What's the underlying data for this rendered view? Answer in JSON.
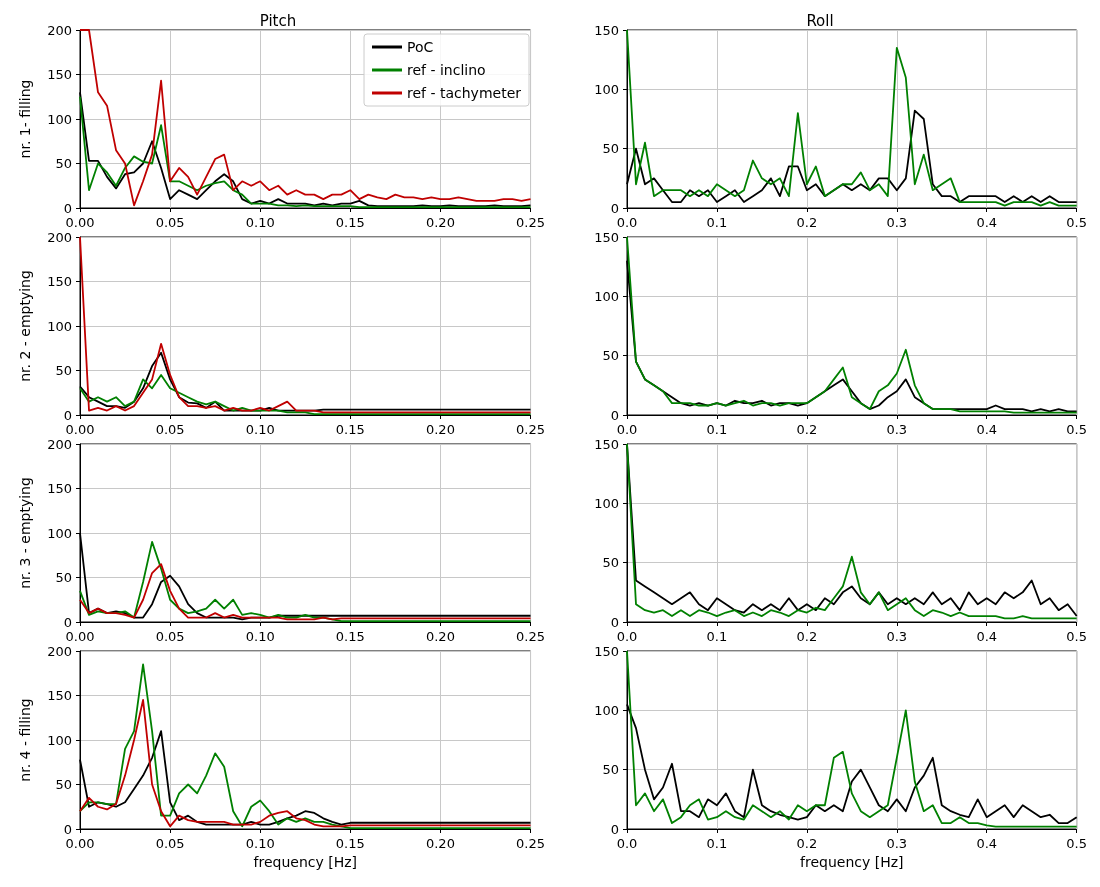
{
  "chart_data": [
    {
      "type": "line",
      "title": "Pitch",
      "ylabel": "nr. 1- filling",
      "x": [
        0,
        0.005,
        0.01,
        0.015,
        0.02,
        0.025,
        0.03,
        0.035,
        0.04,
        0.045,
        0.05,
        0.055,
        0.06,
        0.065,
        0.07,
        0.075,
        0.08,
        0.085,
        0.09,
        0.095,
        0.1,
        0.105,
        0.11,
        0.115,
        0.12,
        0.125,
        0.13,
        0.135,
        0.14,
        0.145,
        0.15,
        0.155,
        0.16,
        0.165,
        0.17,
        0.175,
        0.18,
        0.185,
        0.19,
        0.195,
        0.2,
        0.205,
        0.21,
        0.215,
        0.22,
        0.225,
        0.23,
        0.235,
        0.24,
        0.245,
        0.25
      ],
      "xlim": [
        0,
        0.25
      ],
      "xticks": [
        {
          "value": 0,
          "label": "0.00"
        },
        {
          "value": 0.05,
          "label": "0.05"
        },
        {
          "value": 0.1,
          "label": "0.10"
        },
        {
          "value": 0.15,
          "label": "0.15"
        },
        {
          "value": 0.2,
          "label": "0.20"
        },
        {
          "value": 0.25,
          "label": "0.25"
        }
      ],
      "ylim": [
        0,
        200
      ],
      "yticks": [
        0,
        50,
        100,
        150,
        200
      ],
      "grid": true,
      "legend": "top right",
      "marker": "none",
      "line_style": "solid",
      "series": [
        {
          "name": "PoC",
          "color": "#000000",
          "values": [
            130,
            53,
            53,
            35,
            22,
            38,
            40,
            50,
            75,
            45,
            10,
            20,
            15,
            10,
            20,
            30,
            38,
            30,
            10,
            5,
            8,
            5,
            10,
            5,
            5,
            5,
            3,
            5,
            3,
            5,
            5,
            8,
            3,
            2,
            2,
            2,
            2,
            2,
            3,
            2,
            2,
            3,
            2,
            2,
            2,
            2,
            3,
            2,
            2,
            2,
            3
          ]
        },
        {
          "name": "ref - inclino",
          "color": "#008000",
          "values": [
            125,
            20,
            50,
            40,
            25,
            45,
            58,
            52,
            50,
            93,
            30,
            30,
            25,
            20,
            25,
            28,
            30,
            20,
            15,
            5,
            5,
            5,
            3,
            3,
            2,
            3,
            2,
            2,
            2,
            2,
            2,
            1,
            1,
            1,
            1,
            1,
            1,
            1,
            1,
            1,
            1,
            1,
            1,
            1,
            1,
            1,
            1,
            1,
            1,
            1,
            1
          ]
        },
        {
          "name": "ref - tachymeter",
          "color": "#c00000",
          "values": [
            200,
            200,
            130,
            115,
            65,
            50,
            3,
            30,
            60,
            143,
            30,
            45,
            35,
            15,
            35,
            55,
            60,
            20,
            30,
            25,
            30,
            20,
            25,
            15,
            20,
            15,
            15,
            10,
            15,
            15,
            20,
            10,
            15,
            12,
            10,
            15,
            12,
            12,
            10,
            12,
            10,
            10,
            12,
            10,
            8,
            8,
            8,
            10,
            10,
            8,
            10
          ]
        }
      ]
    },
    {
      "type": "line",
      "title": "Roll",
      "x": [
        0,
        0.01,
        0.02,
        0.03,
        0.04,
        0.05,
        0.06,
        0.07,
        0.08,
        0.09,
        0.1,
        0.11,
        0.12,
        0.13,
        0.14,
        0.15,
        0.16,
        0.17,
        0.18,
        0.19,
        0.2,
        0.21,
        0.22,
        0.23,
        0.24,
        0.25,
        0.26,
        0.27,
        0.28,
        0.29,
        0.3,
        0.31,
        0.32,
        0.33,
        0.34,
        0.35,
        0.36,
        0.37,
        0.38,
        0.39,
        0.4,
        0.41,
        0.42,
        0.43,
        0.44,
        0.45,
        0.46,
        0.47,
        0.48,
        0.49,
        0.5
      ],
      "xlim": [
        0,
        0.5
      ],
      "xticks": [
        {
          "value": 0,
          "label": "0.0"
        },
        {
          "value": 0.1,
          "label": "0.1"
        },
        {
          "value": 0.2,
          "label": "0.2"
        },
        {
          "value": 0.3,
          "label": "0.3"
        },
        {
          "value": 0.4,
          "label": "0.4"
        },
        {
          "value": 0.5,
          "label": "0.5"
        }
      ],
      "ylim": [
        0,
        150
      ],
      "yticks": [
        0,
        50,
        100,
        150
      ],
      "grid": true,
      "marker": "none",
      "line_style": "solid",
      "series": [
        {
          "color": "#000000",
          "values": [
            20,
            50,
            20,
            25,
            15,
            5,
            5,
            15,
            10,
            15,
            5,
            10,
            15,
            5,
            10,
            15,
            25,
            10,
            35,
            35,
            15,
            20,
            10,
            15,
            20,
            15,
            20,
            15,
            25,
            25,
            15,
            25,
            82,
            75,
            20,
            10,
            10,
            5,
            10,
            10,
            10,
            10,
            5,
            10,
            5,
            10,
            5,
            10,
            5,
            5,
            5
          ]
        },
        {
          "color": "#008000",
          "values": [
            150,
            20,
            55,
            10,
            15,
            15,
            15,
            10,
            15,
            10,
            20,
            15,
            10,
            15,
            40,
            25,
            20,
            25,
            10,
            80,
            20,
            35,
            10,
            15,
            20,
            20,
            30,
            15,
            20,
            10,
            135,
            110,
            20,
            45,
            15,
            20,
            25,
            5,
            5,
            5,
            5,
            5,
            2,
            5,
            5,
            5,
            2,
            5,
            2,
            2,
            2
          ]
        }
      ]
    },
    {
      "type": "line",
      "ylabel": "nr. 2 - emptying",
      "x": [
        0,
        0.005,
        0.01,
        0.015,
        0.02,
        0.025,
        0.03,
        0.035,
        0.04,
        0.045,
        0.05,
        0.055,
        0.06,
        0.065,
        0.07,
        0.075,
        0.08,
        0.085,
        0.09,
        0.095,
        0.1,
        0.105,
        0.11,
        0.115,
        0.12,
        0.125,
        0.13,
        0.135,
        0.14,
        0.145,
        0.15,
        0.155,
        0.16,
        0.165,
        0.17,
        0.175,
        0.18,
        0.185,
        0.19,
        0.195,
        0.2,
        0.205,
        0.21,
        0.215,
        0.22,
        0.225,
        0.23,
        0.235,
        0.24,
        0.245,
        0.25
      ],
      "xlim": [
        0,
        0.25
      ],
      "xticks": [
        {
          "value": 0,
          "label": "0.00"
        },
        {
          "value": 0.05,
          "label": "0.05"
        },
        {
          "value": 0.1,
          "label": "0.10"
        },
        {
          "value": 0.15,
          "label": "0.15"
        },
        {
          "value": 0.2,
          "label": "0.20"
        },
        {
          "value": 0.25,
          "label": "0.25"
        }
      ],
      "ylim": [
        0,
        200
      ],
      "yticks": [
        0,
        50,
        100,
        150,
        200
      ],
      "grid": true,
      "marker": "none",
      "line_style": "solid",
      "series": [
        {
          "color": "#000000",
          "values": [
            32,
            20,
            15,
            10,
            10,
            8,
            15,
            30,
            55,
            70,
            40,
            20,
            14,
            13,
            8,
            15,
            5,
            5,
            5,
            5,
            5,
            8,
            5,
            5,
            5,
            5,
            5,
            6,
            6,
            6,
            6,
            6,
            6,
            6,
            6,
            6,
            6,
            6,
            6,
            6,
            6,
            6,
            6,
            6,
            6,
            6,
            6,
            6,
            6,
            6,
            6
          ]
        },
        {
          "color": "#008000",
          "values": [
            30,
            15,
            20,
            15,
            20,
            10,
            15,
            40,
            30,
            45,
            30,
            25,
            20,
            15,
            12,
            15,
            10,
            5,
            8,
            5,
            5,
            5,
            5,
            3,
            3,
            3,
            1,
            1,
            1,
            1,
            1,
            1,
            1,
            1,
            1,
            1,
            1,
            1,
            1,
            1,
            1,
            1,
            1,
            1,
            1,
            1,
            1,
            1,
            1,
            1,
            1
          ]
        },
        {
          "color": "#c00000",
          "values": [
            200,
            5,
            8,
            5,
            10,
            5,
            10,
            25,
            40,
            80,
            45,
            20,
            10,
            10,
            8,
            10,
            5,
            8,
            5,
            5,
            8,
            5,
            10,
            15,
            5,
            5,
            5,
            3,
            3,
            3,
            3,
            3,
            3,
            3,
            3,
            3,
            3,
            3,
            3,
            3,
            3,
            3,
            3,
            3,
            3,
            3,
            3,
            3,
            3,
            3,
            3
          ]
        }
      ]
    },
    {
      "type": "line",
      "x": [
        0,
        0.01,
        0.02,
        0.03,
        0.04,
        0.05,
        0.06,
        0.07,
        0.08,
        0.09,
        0.1,
        0.11,
        0.12,
        0.13,
        0.14,
        0.15,
        0.16,
        0.17,
        0.18,
        0.19,
        0.2,
        0.21,
        0.22,
        0.23,
        0.24,
        0.25,
        0.26,
        0.27,
        0.28,
        0.29,
        0.3,
        0.31,
        0.32,
        0.33,
        0.34,
        0.35,
        0.36,
        0.37,
        0.38,
        0.39,
        0.4,
        0.41,
        0.42,
        0.43,
        0.44,
        0.45,
        0.46,
        0.47,
        0.48,
        0.49,
        0.5
      ],
      "xlim": [
        0,
        0.5
      ],
      "xticks": [
        {
          "value": 0,
          "label": "0.0"
        },
        {
          "value": 0.1,
          "label": "0.1"
        },
        {
          "value": 0.2,
          "label": "0.2"
        },
        {
          "value": 0.3,
          "label": "0.3"
        },
        {
          "value": 0.4,
          "label": "0.4"
        },
        {
          "value": 0.5,
          "label": "0.5"
        }
      ],
      "ylim": [
        0,
        150
      ],
      "yticks": [
        0,
        50,
        100,
        150
      ],
      "grid": true,
      "marker": "none",
      "line_style": "solid",
      "series": [
        {
          "color": "#000000",
          "values": [
            130,
            45,
            30,
            25,
            20,
            15,
            10,
            8,
            10,
            8,
            10,
            8,
            12,
            10,
            10,
            12,
            8,
            10,
            10,
            8,
            10,
            15,
            20,
            25,
            30,
            20,
            10,
            5,
            8,
            15,
            20,
            30,
            15,
            10,
            5,
            5,
            5,
            5,
            5,
            5,
            5,
            8,
            5,
            5,
            5,
            3,
            5,
            3,
            5,
            3,
            3
          ]
        },
        {
          "color": "#008000",
          "values": [
            150,
            45,
            30,
            25,
            20,
            10,
            10,
            10,
            8,
            8,
            10,
            8,
            10,
            12,
            8,
            10,
            10,
            8,
            10,
            10,
            10,
            15,
            20,
            30,
            40,
            15,
            10,
            5,
            20,
            25,
            35,
            55,
            25,
            10,
            5,
            5,
            5,
            3,
            3,
            3,
            3,
            3,
            3,
            2,
            2,
            2,
            2,
            2,
            2,
            2,
            2
          ]
        }
      ]
    },
    {
      "type": "line",
      "ylabel": "nr. 3 - emptying",
      "x": [
        0,
        0.005,
        0.01,
        0.015,
        0.02,
        0.025,
        0.03,
        0.035,
        0.04,
        0.045,
        0.05,
        0.055,
        0.06,
        0.065,
        0.07,
        0.075,
        0.08,
        0.085,
        0.09,
        0.095,
        0.1,
        0.105,
        0.11,
        0.115,
        0.12,
        0.125,
        0.13,
        0.135,
        0.14,
        0.145,
        0.15,
        0.155,
        0.16,
        0.165,
        0.17,
        0.175,
        0.18,
        0.185,
        0.19,
        0.195,
        0.2,
        0.205,
        0.21,
        0.215,
        0.22,
        0.225,
        0.23,
        0.235,
        0.24,
        0.245,
        0.25
      ],
      "xlim": [
        0,
        0.25
      ],
      "xticks": [
        {
          "value": 0,
          "label": "0.00"
        },
        {
          "value": 0.05,
          "label": "0.05"
        },
        {
          "value": 0.1,
          "label": "0.10"
        },
        {
          "value": 0.15,
          "label": "0.15"
        },
        {
          "value": 0.2,
          "label": "0.20"
        },
        {
          "value": 0.25,
          "label": "0.25"
        }
      ],
      "ylim": [
        0,
        200
      ],
      "yticks": [
        0,
        50,
        100,
        150,
        200
      ],
      "grid": true,
      "marker": "none",
      "line_style": "solid",
      "series": [
        {
          "color": "#000000",
          "values": [
            100,
            10,
            15,
            10,
            12,
            10,
            5,
            5,
            20,
            45,
            52,
            40,
            20,
            10,
            5,
            5,
            5,
            5,
            3,
            5,
            5,
            5,
            7,
            7,
            7,
            7,
            7,
            7,
            7,
            7,
            7,
            7,
            7,
            7,
            7,
            7,
            7,
            7,
            7,
            7,
            7,
            7,
            7,
            7,
            7,
            7,
            7,
            7,
            7,
            7,
            7
          ]
        },
        {
          "color": "#008000",
          "values": [
            35,
            8,
            12,
            10,
            10,
            12,
            5,
            45,
            90,
            60,
            25,
            15,
            10,
            12,
            15,
            25,
            15,
            25,
            8,
            10,
            8,
            5,
            8,
            5,
            5,
            8,
            5,
            5,
            3,
            1,
            1,
            1,
            1,
            1,
            1,
            1,
            1,
            1,
            1,
            1,
            1,
            1,
            1,
            1,
            1,
            1,
            1,
            1,
            1,
            1,
            1
          ]
        },
        {
          "color": "#c00000",
          "values": [
            25,
            10,
            15,
            10,
            10,
            8,
            5,
            25,
            55,
            65,
            35,
            15,
            5,
            5,
            5,
            10,
            5,
            8,
            5,
            5,
            5,
            5,
            5,
            3,
            3,
            3,
            3,
            5,
            3,
            4,
            4,
            4,
            4,
            4,
            4,
            4,
            4,
            4,
            4,
            4,
            4,
            4,
            4,
            4,
            4,
            4,
            4,
            4,
            4,
            4,
            4
          ]
        }
      ]
    },
    {
      "type": "line",
      "x": [
        0,
        0.01,
        0.02,
        0.03,
        0.04,
        0.05,
        0.06,
        0.07,
        0.08,
        0.09,
        0.1,
        0.11,
        0.12,
        0.13,
        0.14,
        0.15,
        0.16,
        0.17,
        0.18,
        0.19,
        0.2,
        0.21,
        0.22,
        0.23,
        0.24,
        0.25,
        0.26,
        0.27,
        0.28,
        0.29,
        0.3,
        0.31,
        0.32,
        0.33,
        0.34,
        0.35,
        0.36,
        0.37,
        0.38,
        0.39,
        0.4,
        0.41,
        0.42,
        0.43,
        0.44,
        0.45,
        0.46,
        0.47,
        0.48,
        0.49,
        0.5
      ],
      "xlim": [
        0,
        0.5
      ],
      "xticks": [
        {
          "value": 0,
          "label": "0.0"
        },
        {
          "value": 0.1,
          "label": "0.1"
        },
        {
          "value": 0.2,
          "label": "0.2"
        },
        {
          "value": 0.3,
          "label": "0.3"
        },
        {
          "value": 0.4,
          "label": "0.4"
        },
        {
          "value": 0.5,
          "label": "0.5"
        }
      ],
      "ylim": [
        0,
        150
      ],
      "yticks": [
        0,
        50,
        100,
        150
      ],
      "grid": true,
      "marker": "none",
      "line_style": "solid",
      "series": [
        {
          "color": "#000000",
          "values": [
            150,
            35,
            30,
            25,
            20,
            15,
            20,
            25,
            15,
            10,
            20,
            15,
            10,
            8,
            15,
            10,
            15,
            10,
            20,
            10,
            15,
            10,
            20,
            15,
            25,
            30,
            20,
            15,
            25,
            15,
            20,
            15,
            20,
            15,
            25,
            15,
            20,
            10,
            25,
            15,
            20,
            15,
            25,
            20,
            25,
            35,
            15,
            20,
            10,
            15,
            5
          ]
        },
        {
          "color": "#008000",
          "values": [
            150,
            15,
            10,
            8,
            10,
            5,
            10,
            5,
            10,
            8,
            5,
            8,
            10,
            5,
            8,
            5,
            10,
            8,
            5,
            10,
            8,
            12,
            10,
            20,
            30,
            55,
            25,
            15,
            25,
            10,
            15,
            20,
            10,
            5,
            10,
            8,
            5,
            8,
            5,
            5,
            5,
            5,
            3,
            3,
            5,
            3,
            3,
            3,
            3,
            3,
            3
          ]
        }
      ]
    },
    {
      "type": "line",
      "ylabel": "nr. 4 - filling",
      "xlabel": "frequency [Hz]",
      "x": [
        0,
        0.005,
        0.01,
        0.015,
        0.02,
        0.025,
        0.03,
        0.035,
        0.04,
        0.045,
        0.05,
        0.055,
        0.06,
        0.065,
        0.07,
        0.075,
        0.08,
        0.085,
        0.09,
        0.095,
        0.1,
        0.105,
        0.11,
        0.115,
        0.12,
        0.125,
        0.13,
        0.135,
        0.14,
        0.145,
        0.15,
        0.155,
        0.16,
        0.165,
        0.17,
        0.175,
        0.18,
        0.185,
        0.19,
        0.195,
        0.2,
        0.205,
        0.21,
        0.215,
        0.22,
        0.225,
        0.23,
        0.235,
        0.24,
        0.245,
        0.25
      ],
      "xlim": [
        0,
        0.25
      ],
      "xticks": [
        {
          "value": 0,
          "label": "0.00"
        },
        {
          "value": 0.05,
          "label": "0.05"
        },
        {
          "value": 0.1,
          "label": "0.10"
        },
        {
          "value": 0.15,
          "label": "0.15"
        },
        {
          "value": 0.2,
          "label": "0.20"
        },
        {
          "value": 0.25,
          "label": "0.25"
        }
      ],
      "ylim": [
        0,
        200
      ],
      "yticks": [
        0,
        50,
        100,
        150,
        200
      ],
      "grid": true,
      "marker": "none",
      "line_style": "solid",
      "series": [
        {
          "color": "#000000",
          "values": [
            78,
            25,
            30,
            28,
            25,
            30,
            45,
            60,
            80,
            110,
            30,
            10,
            15,
            8,
            5,
            5,
            5,
            5,
            5,
            8,
            5,
            5,
            8,
            12,
            15,
            20,
            18,
            12,
            8,
            5,
            7,
            7,
            7,
            7,
            7,
            7,
            7,
            7,
            7,
            7,
            7,
            7,
            7,
            7,
            7,
            7,
            7,
            7,
            7,
            7,
            7
          ]
        },
        {
          "color": "#008000",
          "values": [
            20,
            30,
            30,
            28,
            28,
            90,
            110,
            185,
            110,
            15,
            15,
            40,
            50,
            40,
            60,
            85,
            70,
            20,
            3,
            25,
            32,
            20,
            5,
            12,
            8,
            12,
            8,
            8,
            5,
            3,
            1,
            1,
            1,
            1,
            1,
            1,
            1,
            1,
            1,
            1,
            1,
            1,
            1,
            1,
            1,
            1,
            1,
            1,
            1,
            1,
            1
          ]
        },
        {
          "color": "#c00000",
          "values": [
            20,
            35,
            25,
            22,
            28,
            60,
            100,
            145,
            50,
            20,
            3,
            15,
            10,
            8,
            8,
            8,
            8,
            5,
            5,
            5,
            8,
            15,
            18,
            20,
            12,
            10,
            5,
            3,
            3,
            3,
            4,
            4,
            4,
            4,
            4,
            4,
            4,
            4,
            4,
            4,
            4,
            4,
            4,
            4,
            4,
            4,
            4,
            4,
            4,
            4,
            4
          ]
        }
      ]
    },
    {
      "type": "line",
      "xlabel": "frequency [Hz]",
      "x": [
        0,
        0.01,
        0.02,
        0.03,
        0.04,
        0.05,
        0.06,
        0.07,
        0.08,
        0.09,
        0.1,
        0.11,
        0.12,
        0.13,
        0.14,
        0.15,
        0.16,
        0.17,
        0.18,
        0.19,
        0.2,
        0.21,
        0.22,
        0.23,
        0.24,
        0.25,
        0.26,
        0.27,
        0.28,
        0.29,
        0.3,
        0.31,
        0.32,
        0.33,
        0.34,
        0.35,
        0.36,
        0.37,
        0.38,
        0.39,
        0.4,
        0.41,
        0.42,
        0.43,
        0.44,
        0.45,
        0.46,
        0.47,
        0.48,
        0.49,
        0.5
      ],
      "xlim": [
        0,
        0.5
      ],
      "xticks": [
        {
          "value": 0,
          "label": "0.0"
        },
        {
          "value": 0.1,
          "label": "0.1"
        },
        {
          "value": 0.2,
          "label": "0.2"
        },
        {
          "value": 0.3,
          "label": "0.3"
        },
        {
          "value": 0.4,
          "label": "0.4"
        },
        {
          "value": 0.5,
          "label": "0.5"
        }
      ],
      "ylim": [
        0,
        150
      ],
      "yticks": [
        0,
        50,
        100,
        150
      ],
      "grid": true,
      "marker": "none",
      "line_style": "solid",
      "series": [
        {
          "color": "#000000",
          "values": [
            105,
            85,
            50,
            25,
            35,
            55,
            15,
            15,
            10,
            25,
            20,
            30,
            15,
            10,
            50,
            20,
            15,
            12,
            10,
            8,
            10,
            20,
            15,
            20,
            15,
            40,
            50,
            35,
            20,
            15,
            25,
            15,
            35,
            45,
            60,
            20,
            15,
            12,
            10,
            25,
            10,
            15,
            20,
            10,
            20,
            15,
            10,
            12,
            5,
            5,
            10
          ]
        },
        {
          "color": "#008000",
          "values": [
            150,
            20,
            30,
            15,
            25,
            5,
            10,
            20,
            25,
            8,
            10,
            15,
            10,
            8,
            20,
            15,
            10,
            15,
            8,
            20,
            15,
            20,
            20,
            60,
            65,
            30,
            15,
            10,
            15,
            20,
            60,
            100,
            40,
            15,
            20,
            5,
            5,
            10,
            5,
            5,
            3,
            2,
            2,
            2,
            2,
            2,
            2,
            2,
            2,
            2,
            2
          ]
        }
      ]
    }
  ]
}
